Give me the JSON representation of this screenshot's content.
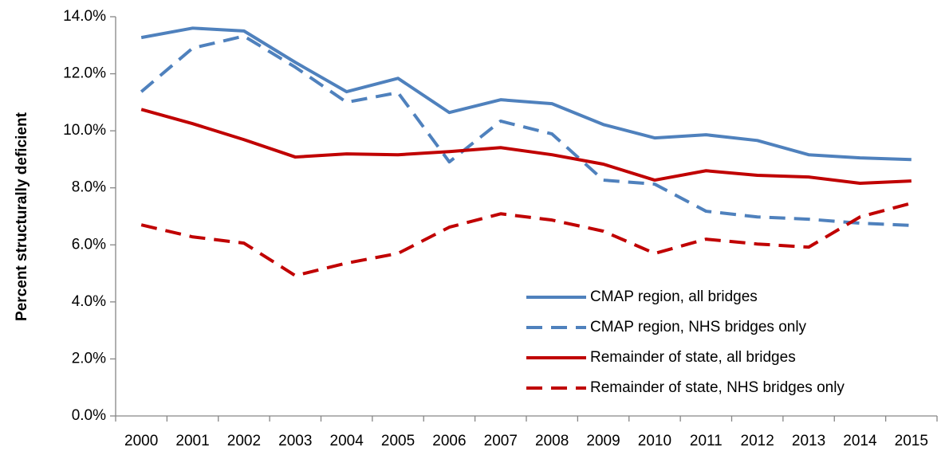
{
  "chart_data": {
    "type": "line",
    "y_label": "Percent structurally deficient",
    "categories": [
      "2000",
      "2001",
      "2002",
      "2003",
      "2004",
      "2005",
      "2006",
      "2007",
      "2008",
      "2009",
      "2010",
      "2011",
      "2012",
      "2013",
      "2014",
      "2015"
    ],
    "series": [
      {
        "name": "CMAP region, all bridges",
        "color": "#4f81bd",
        "dashed": false,
        "values": [
          13.27,
          13.6,
          13.5,
          12.4,
          11.37,
          11.84,
          10.64,
          11.09,
          10.95,
          10.22,
          9.75,
          9.86,
          9.66,
          9.16,
          9.05,
          8.99
        ]
      },
      {
        "name": "CMAP region, NHS bridges only",
        "color": "#4f81bd",
        "dashed": true,
        "values": [
          11.37,
          12.9,
          13.32,
          12.23,
          11.0,
          11.34,
          8.91,
          10.34,
          9.89,
          8.27,
          8.13,
          7.18,
          6.98,
          6.9,
          6.76,
          6.68
        ]
      },
      {
        "name": "Remainder of state, all bridges",
        "color": "#c00000",
        "dashed": false,
        "values": [
          10.75,
          10.25,
          9.69,
          9.08,
          9.19,
          9.16,
          9.27,
          9.41,
          9.16,
          8.83,
          8.27,
          8.6,
          8.44,
          8.38,
          8.16,
          8.24
        ]
      },
      {
        "name": "Remainder of state, NHS bridges only",
        "color": "#c00000",
        "dashed": true,
        "values": [
          6.7,
          6.28,
          6.06,
          4.92,
          5.36,
          5.7,
          6.62,
          7.09,
          6.87,
          6.48,
          5.7,
          6.2,
          6.03,
          5.92,
          6.98,
          7.46
        ]
      }
    ],
    "ylim": [
      0,
      14
    ],
    "yticks": [
      {
        "value": 0,
        "label": "0.0%"
      },
      {
        "value": 2,
        "label": "2.0%"
      },
      {
        "value": 4,
        "label": "4.0%"
      },
      {
        "value": 6,
        "label": "6.0%"
      },
      {
        "value": 8,
        "label": "8.0%"
      },
      {
        "value": 10,
        "label": "10.0%"
      },
      {
        "value": 12,
        "label": "12.0%"
      },
      {
        "value": 14,
        "label": "14.0%"
      }
    ],
    "grid": false,
    "legend": "lower right"
  }
}
